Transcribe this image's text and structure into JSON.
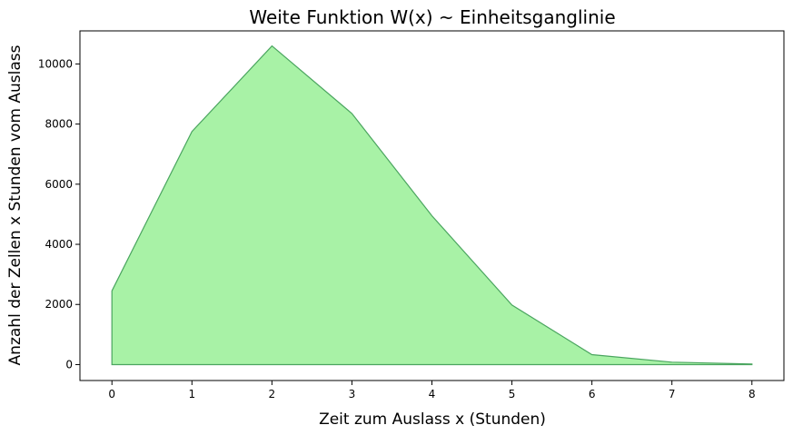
{
  "chart_data": {
    "type": "area",
    "title": "Weite Funktion W(x) ~ Einheitsganglinie",
    "xlabel": "Zeit zum Auslass x (Stunden)",
    "ylabel": "Anzahl der Zellen x Stunden vom Auslass",
    "x": [
      0,
      1,
      2,
      3,
      4,
      5,
      6,
      7,
      8
    ],
    "values": [
      2450,
      7750,
      10600,
      8350,
      4950,
      1980,
      330,
      80,
      20
    ],
    "xlim": [
      -0.4,
      8.4
    ],
    "ylim": [
      -530,
      11100
    ],
    "xticks": [
      "0",
      "1",
      "2",
      "3",
      "4",
      "5",
      "6",
      "7",
      "8"
    ],
    "yticks": [
      "0",
      "2000",
      "4000",
      "6000",
      "8000",
      "10000"
    ],
    "grid": false,
    "colors": {
      "fill": "#a8f2a6",
      "line": "#4aa55f"
    }
  }
}
